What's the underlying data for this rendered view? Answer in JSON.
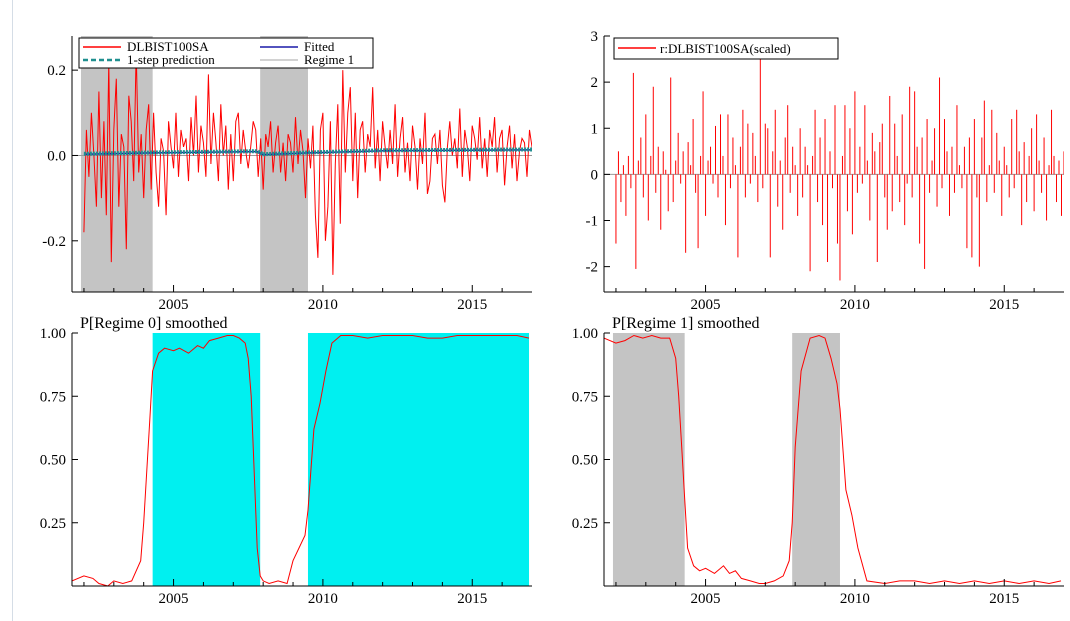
{
  "colors": {
    "series_red": "#ff0000",
    "fitted_blue": "#1a1aa8",
    "prediction_teal": "#1f8f8f",
    "regime_grey": "#c4c4c4",
    "regime0_cyan": "#00f0f0",
    "axis": "#000000"
  },
  "chart_data": [
    {
      "id": "tl",
      "type": "line",
      "title": "",
      "xlabel": "",
      "ylabel": "",
      "xlim": [
        2001.6,
        2017.0
      ],
      "ylim": [
        -0.32,
        0.28
      ],
      "grid": false,
      "zero_line": true,
      "x_ticks": [
        {
          "value": 2005,
          "label": "2005"
        },
        {
          "value": 2010,
          "label": "2010"
        },
        {
          "value": 2015,
          "label": "2015"
        }
      ],
      "y_ticks": [
        {
          "value": 0.2,
          "label": "0.2"
        },
        {
          "value": 0.0,
          "label": "0.0"
        },
        {
          "value": -0.2,
          "label": "-0.2"
        }
      ],
      "shaded_regions": [
        {
          "x0": 2001.9,
          "x1": 2004.3,
          "color": "#c4c4c4"
        },
        {
          "x0": 2007.9,
          "x1": 2009.5,
          "color": "#c4c4c4"
        }
      ],
      "legend": {
        "position": "top-left",
        "entries": [
          {
            "label": "DLBIST100SA",
            "color": "#ff0000",
            "style": "line"
          },
          {
            "label": "Fitted",
            "color": "#1a1aa8",
            "style": "line"
          },
          {
            "label": "1-step prediction",
            "color": "#1f8f8f",
            "style": "dashed-dot"
          },
          {
            "label": "Regime 1",
            "color": "#c4c4c4",
            "style": "line"
          }
        ]
      },
      "series": [
        {
          "name": "DLBIST100SA",
          "color": "#ff0000",
          "x_start": 2002.0,
          "x_step": 0.08333,
          "values": [
            -0.18,
            0.06,
            -0.05,
            0.1,
            0.0,
            -0.12,
            0.15,
            -0.1,
            0.08,
            -0.14,
            0.22,
            -0.25,
            0.06,
            0.18,
            -0.12,
            0.05,
            0.02,
            -0.22,
            0.14,
            0.08,
            -0.06,
            0.25,
            -0.04,
            0.05,
            -0.1,
            0.06,
            0.12,
            -0.08,
            0.1,
            -0.04,
            -0.12,
            0.04,
            0.01,
            -0.14,
            0.08,
            0.02,
            -0.03,
            0.1,
            -0.05,
            0.06,
            0.02,
            0.04,
            -0.06,
            0.09,
            0.0,
            0.14,
            -0.04,
            0.07,
            0.03,
            -0.05,
            0.19,
            -0.02,
            0.1,
            0.03,
            -0.06,
            0.12,
            0.0,
            0.07,
            -0.08,
            0.05,
            -0.06,
            0.08,
            0.1,
            -0.02,
            0.06,
            0.01,
            -0.03,
            0.02,
            0.08,
            0.06,
            -0.05,
            0.04,
            -0.08,
            0.05,
            0.02,
            0.08,
            -0.04,
            0.03,
            0.07,
            -0.04,
            0.03,
            -0.06,
            0.05,
            0.03,
            -0.04,
            0.09,
            -0.02,
            0.06,
            0.01,
            -0.1,
            0.04,
            -0.03,
            0.07,
            -0.14,
            -0.24,
            0.06,
            0.1,
            -0.2,
            -0.12,
            0.08,
            -0.28,
            -0.02,
            0.12,
            -0.16,
            0.2,
            -0.04,
            0.1,
            0.16,
            -0.06,
            0.1,
            -0.1,
            0.06,
            0.08,
            -0.04,
            0.05,
            0.02,
            0.16,
            -0.03,
            0.06,
            -0.06,
            0.08,
            0.02,
            -0.03,
            0.06,
            -0.02,
            0.12,
            -0.05,
            0.04,
            0.09,
            -0.04,
            0.03,
            -0.06,
            0.07,
            0.02,
            -0.08,
            0.04,
            -0.02,
            0.1,
            -0.09,
            -0.06,
            0.04,
            0.05,
            -0.02,
            0.06,
            -0.07,
            -0.11,
            0.02,
            0.08,
            0.0,
            0.04,
            -0.03,
            0.11,
            -0.05,
            0.06,
            0.02,
            -0.06,
            0.07,
            0.04,
            -0.01,
            0.09,
            -0.03,
            0.04,
            -0.05,
            0.06,
            0.02,
            0.09,
            -0.04,
            0.04,
            0.06,
            -0.07,
            0.02,
            0.07,
            -0.03,
            0.05,
            -0.06,
            0.01,
            0.04,
            0.03,
            -0.05,
            0.06,
            0.02,
            -0.03,
            0.05
          ]
        },
        {
          "name": "Fitted",
          "color": "#1a1aa8",
          "x": [
            2002.0,
            2004.3,
            2007.8,
            2008.0,
            2009.5,
            2012.0,
            2017.0
          ],
          "values": [
            0.003,
            0.006,
            0.009,
            0.002,
            0.006,
            0.011,
            0.013
          ]
        },
        {
          "name": "1-step prediction",
          "color": "#1f8f8f",
          "x": [
            2002.0,
            2004.3,
            2007.8,
            2008.0,
            2009.5,
            2012.0,
            2017.0
          ],
          "values": [
            0.004,
            0.007,
            0.01,
            0.003,
            0.007,
            0.012,
            0.014
          ]
        }
      ]
    },
    {
      "id": "tr",
      "type": "bar",
      "title": "",
      "xlabel": "",
      "ylabel": "",
      "xlim": [
        2001.6,
        2017.0
      ],
      "ylim": [
        -2.55,
        3.0
      ],
      "grid": false,
      "zero_line": true,
      "x_ticks": [
        {
          "value": 2005,
          "label": "2005"
        },
        {
          "value": 2010,
          "label": "2010"
        },
        {
          "value": 2015,
          "label": "2015"
        }
      ],
      "y_ticks": [
        {
          "value": 3,
          "label": "3"
        },
        {
          "value": 2,
          "label": "2"
        },
        {
          "value": 1,
          "label": "1"
        },
        {
          "value": 0,
          "label": "0"
        },
        {
          "value": -1,
          "label": "-1"
        },
        {
          "value": -2,
          "label": "-2"
        }
      ],
      "shaded_regions": [],
      "legend": {
        "position": "top-left",
        "entries": [
          {
            "label": "r:DLBIST100SA(scaled)",
            "color": "#ff0000",
            "style": "line"
          }
        ]
      },
      "series": [
        {
          "name": "r:DLBIST100SA(scaled)",
          "color": "#ff0000",
          "style": "spike",
          "x_start": 2002.0,
          "x_step": 0.08333,
          "values": [
            -1.5,
            0.5,
            -0.6,
            0.2,
            -0.9,
            0.4,
            -0.3,
            2.2,
            -2.05,
            0.3,
            0.8,
            -0.5,
            1.3,
            -1.0,
            0.4,
            1.9,
            -0.4,
            0.6,
            -1.2,
            0.5,
            0.1,
            -0.8,
            2.1,
            -0.6,
            0.3,
            0.9,
            -0.2,
            0.5,
            -1.7,
            0.7,
            0.2,
            1.2,
            -0.4,
            -1.6,
            0.4,
            1.8,
            -0.9,
            0.3,
            0.6,
            -0.2,
            1.05,
            -0.5,
            1.3,
            0.4,
            -1.1,
            1.3,
            -0.3,
            0.8,
            0.2,
            -1.8,
            0.6,
            1.4,
            -0.5,
            1.1,
            -0.2,
            0.9,
            0.4,
            -0.6,
            2.6,
            -0.3,
            1.1,
            1.0,
            -1.8,
            0.5,
            1.4,
            -0.7,
            0.3,
            -1.2,
            0.8,
            1.5,
            -0.4,
            0.6,
            0.2,
            -0.9,
            1.0,
            -0.5,
            0.6,
            0.2,
            -2.1,
            0.4,
            1.4,
            -0.6,
            0.8,
            -1.1,
            1.2,
            -1.9,
            0.5,
            -0.3,
            1.5,
            -1.5,
            -2.3,
            0.4,
            1.5,
            -0.8,
            1.0,
            -1.3,
            1.8,
            -0.4,
            0.6,
            -0.2,
            1.5,
            0.3,
            -1.0,
            0.9,
            0.5,
            -1.9,
            0.7,
            1.1,
            -0.5,
            -1.2,
            1.7,
            -0.8,
            1.1,
            0.4,
            -0.6,
            1.3,
            -1.1,
            -0.2,
            1.9,
            -0.5,
            1.8,
            0.6,
            -1.5,
            0.8,
            -2.05,
            1.2,
            -0.4,
            0.3,
            1.0,
            -0.7,
            2.1,
            -0.3,
            1.2,
            0.5,
            -0.9,
            0.6,
            -0.4,
            1.5,
            0.2,
            -0.3,
            0.6,
            -1.6,
            0.8,
            -1.8,
            1.2,
            -0.5,
            -2.0,
            0.8,
            1.6,
            -0.6,
            0.2,
            1.4,
            -0.4,
            0.9,
            0.3,
            -0.9,
            0.6,
            0.2,
            -0.5,
            1.2,
            -0.3,
            1.4,
            0.5,
            -1.1,
            0.7,
            -0.6,
            0.4,
            1.0,
            -0.8,
            1.3,
            0.3,
            -0.4,
            0.8,
            -1.0,
            0.2,
            1.4,
            0.4,
            -0.6,
            0.3,
            -0.9,
            0.5,
            0.8,
            -1.0,
            0.6
          ]
        }
      ]
    },
    {
      "id": "bl",
      "type": "line",
      "title": "P[Regime 0] smoothed",
      "xlabel": "",
      "ylabel": "",
      "xlim": [
        2001.6,
        2017.0
      ],
      "ylim": [
        0.0,
        1.0
      ],
      "grid": false,
      "zero_line": false,
      "x_ticks": [
        {
          "value": 2005,
          "label": "2005"
        },
        {
          "value": 2010,
          "label": "2010"
        },
        {
          "value": 2015,
          "label": "2015"
        }
      ],
      "y_ticks": [
        {
          "value": 1.0,
          "label": "1.00"
        },
        {
          "value": 0.75,
          "label": "0.75"
        },
        {
          "value": 0.5,
          "label": "0.50"
        },
        {
          "value": 0.25,
          "label": "0.25"
        }
      ],
      "shaded_regions": [
        {
          "x0": 2004.3,
          "x1": 2007.9,
          "color": "#00f0f0"
        },
        {
          "x0": 2009.5,
          "x1": 2016.9,
          "color": "#00f0f0"
        }
      ],
      "legend": null,
      "series": [
        {
          "name": "",
          "color": "#ff0000",
          "x": [
            2001.6,
            2002.0,
            2002.3,
            2002.5,
            2002.8,
            2003.0,
            2003.3,
            2003.6,
            2003.9,
            2004.0,
            2004.1,
            2004.2,
            2004.3,
            2004.5,
            2004.7,
            2005.0,
            2005.2,
            2005.5,
            2005.8,
            2006.0,
            2006.2,
            2006.5,
            2006.8,
            2007.0,
            2007.2,
            2007.4,
            2007.5,
            2007.6,
            2007.7,
            2007.8,
            2007.9,
            2008.0,
            2008.2,
            2008.5,
            2008.8,
            2009.0,
            2009.2,
            2009.4,
            2009.5,
            2009.7,
            2009.9,
            2010.1,
            2010.3,
            2010.6,
            2011.0,
            2011.5,
            2012.0,
            2012.5,
            2013.0,
            2013.5,
            2014.0,
            2014.5,
            2015.0,
            2015.5,
            2016.0,
            2016.5,
            2016.9
          ],
          "values": [
            0.02,
            0.04,
            0.03,
            0.01,
            0.0,
            0.02,
            0.01,
            0.02,
            0.1,
            0.25,
            0.45,
            0.65,
            0.85,
            0.92,
            0.94,
            0.93,
            0.94,
            0.92,
            0.95,
            0.94,
            0.97,
            0.98,
            0.99,
            0.99,
            0.98,
            0.96,
            0.9,
            0.75,
            0.45,
            0.15,
            0.04,
            0.02,
            0.01,
            0.02,
            0.01,
            0.1,
            0.15,
            0.2,
            0.3,
            0.62,
            0.72,
            0.85,
            0.96,
            0.99,
            0.99,
            0.98,
            0.99,
            0.99,
            0.99,
            0.98,
            0.98,
            0.99,
            0.99,
            0.99,
            0.99,
            0.99,
            0.98
          ]
        }
      ]
    },
    {
      "id": "br",
      "type": "line",
      "title": "P[Regime 1] smoothed",
      "xlabel": "",
      "ylabel": "",
      "xlim": [
        2001.6,
        2017.0
      ],
      "ylim": [
        0.0,
        1.0
      ],
      "grid": false,
      "zero_line": false,
      "x_ticks": [
        {
          "value": 2005,
          "label": "2005"
        },
        {
          "value": 2010,
          "label": "2010"
        },
        {
          "value": 2015,
          "label": "2015"
        }
      ],
      "y_ticks": [
        {
          "value": 1.0,
          "label": "1.00"
        },
        {
          "value": 0.75,
          "label": "0.75"
        },
        {
          "value": 0.5,
          "label": "0.50"
        },
        {
          "value": 0.25,
          "label": "0.25"
        }
      ],
      "shaded_regions": [
        {
          "x0": 2001.9,
          "x1": 2004.3,
          "color": "#c4c4c4"
        },
        {
          "x0": 2007.9,
          "x1": 2009.5,
          "color": "#c4c4c4"
        }
      ],
      "legend": null,
      "series": [
        {
          "name": "",
          "color": "#ff0000",
          "x": [
            2001.6,
            2002.0,
            2002.3,
            2002.6,
            2002.9,
            2003.2,
            2003.5,
            2003.8,
            2004.0,
            2004.1,
            2004.2,
            2004.3,
            2004.4,
            2004.6,
            2004.8,
            2005.0,
            2005.3,
            2005.6,
            2005.8,
            2006.0,
            2006.2,
            2006.5,
            2006.8,
            2007.0,
            2007.3,
            2007.6,
            2007.8,
            2007.9,
            2008.0,
            2008.2,
            2008.5,
            2008.8,
            2009.0,
            2009.2,
            2009.4,
            2009.5,
            2009.7,
            2009.9,
            2010.1,
            2010.4,
            2011.0,
            2011.5,
            2012.0,
            2012.5,
            2013.0,
            2013.5,
            2014.0,
            2014.5,
            2015.0,
            2015.5,
            2016.0,
            2016.5,
            2016.9
          ],
          "values": [
            0.98,
            0.96,
            0.97,
            0.99,
            0.98,
            0.99,
            0.98,
            0.98,
            0.9,
            0.75,
            0.55,
            0.35,
            0.15,
            0.08,
            0.06,
            0.07,
            0.05,
            0.08,
            0.05,
            0.06,
            0.03,
            0.02,
            0.01,
            0.01,
            0.02,
            0.04,
            0.1,
            0.25,
            0.55,
            0.85,
            0.98,
            0.99,
            0.98,
            0.9,
            0.8,
            0.7,
            0.38,
            0.28,
            0.15,
            0.02,
            0.01,
            0.02,
            0.02,
            0.01,
            0.02,
            0.01,
            0.02,
            0.01,
            0.02,
            0.01,
            0.02,
            0.01,
            0.02
          ]
        }
      ]
    }
  ]
}
